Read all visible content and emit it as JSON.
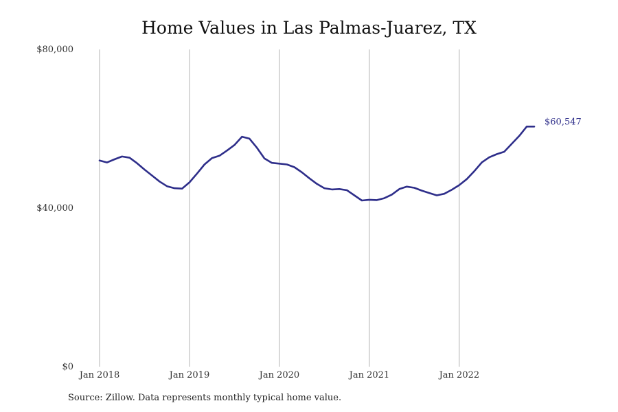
{
  "chart_data": {
    "type": "line",
    "title": "Home Values in Las Palmas-Juarez, TX",
    "xlabel": "",
    "ylabel": "",
    "x_ticks": [
      {
        "label": "Jan 2018",
        "month": 0
      },
      {
        "label": "Jan 2019",
        "month": 12
      },
      {
        "label": "Jan 2020",
        "month": 24
      },
      {
        "label": "Jan 2021",
        "month": 36
      },
      {
        "label": "Jan 2022",
        "month": 48
      }
    ],
    "y_ticks": [
      {
        "label": "$0",
        "value": 0
      },
      {
        "label": "$40,000",
        "value": 40000
      },
      {
        "label": "$80,000",
        "value": 80000
      }
    ],
    "ylim": [
      0,
      80000
    ],
    "x_range": [
      "Jan 2018",
      "Nov 2022"
    ],
    "grid": "vertical lines at January ticks",
    "line_color": "#2e2e8a",
    "series": [
      {
        "name": "",
        "x": [
          "Jan 2018",
          "Feb 2018",
          "Mar 2018",
          "Apr 2018",
          "May 2018",
          "Jun 2018",
          "Jul 2018",
          "Aug 2018",
          "Sep 2018",
          "Oct 2018",
          "Nov 2018",
          "Dec 2018",
          "Jan 2019",
          "Feb 2019",
          "Mar 2019",
          "Apr 2019",
          "May 2019",
          "Jun 2019",
          "Jul 2019",
          "Aug 2019",
          "Sep 2019",
          "Oct 2019",
          "Nov 2019",
          "Dec 2019",
          "Jan 2020",
          "Feb 2020",
          "Mar 2020",
          "Apr 2020",
          "May 2020",
          "Jun 2020",
          "Jul 2020",
          "Aug 2020",
          "Sep 2020",
          "Oct 2020",
          "Nov 2020",
          "Dec 2020",
          "Jan 2021",
          "Feb 2021",
          "Mar 2021",
          "Apr 2021",
          "May 2021",
          "Jun 2021",
          "Jul 2021",
          "Aug 2021",
          "Sep 2021",
          "Oct 2021",
          "Nov 2021",
          "Dec 2021",
          "Jan 2022",
          "Feb 2022",
          "Mar 2022",
          "Apr 2022",
          "May 2022",
          "Jun 2022",
          "Jul 2022",
          "Aug 2022",
          "Sep 2022",
          "Oct 2022",
          "Nov 2022"
        ],
        "values": [
          52000,
          51500,
          52300,
          53000,
          52700,
          51300,
          49700,
          48200,
          46700,
          45500,
          45000,
          44900,
          46500,
          48700,
          51000,
          52600,
          53200,
          54500,
          55900,
          58000,
          57500,
          55200,
          52500,
          51400,
          51200,
          51000,
          50300,
          49000,
          47500,
          46100,
          45000,
          44700,
          44800,
          44500,
          43200,
          41900,
          42100,
          42000,
          42500,
          43400,
          44800,
          45400,
          45100,
          44400,
          43800,
          43200,
          43600,
          44600,
          45800,
          47300,
          49300,
          51500,
          52800,
          53600,
          54200,
          56200,
          58200,
          60547,
          60547
        ],
        "end_label": "$60,547"
      }
    ]
  },
  "source": "Source: Zillow. Data represents monthly typical home value."
}
